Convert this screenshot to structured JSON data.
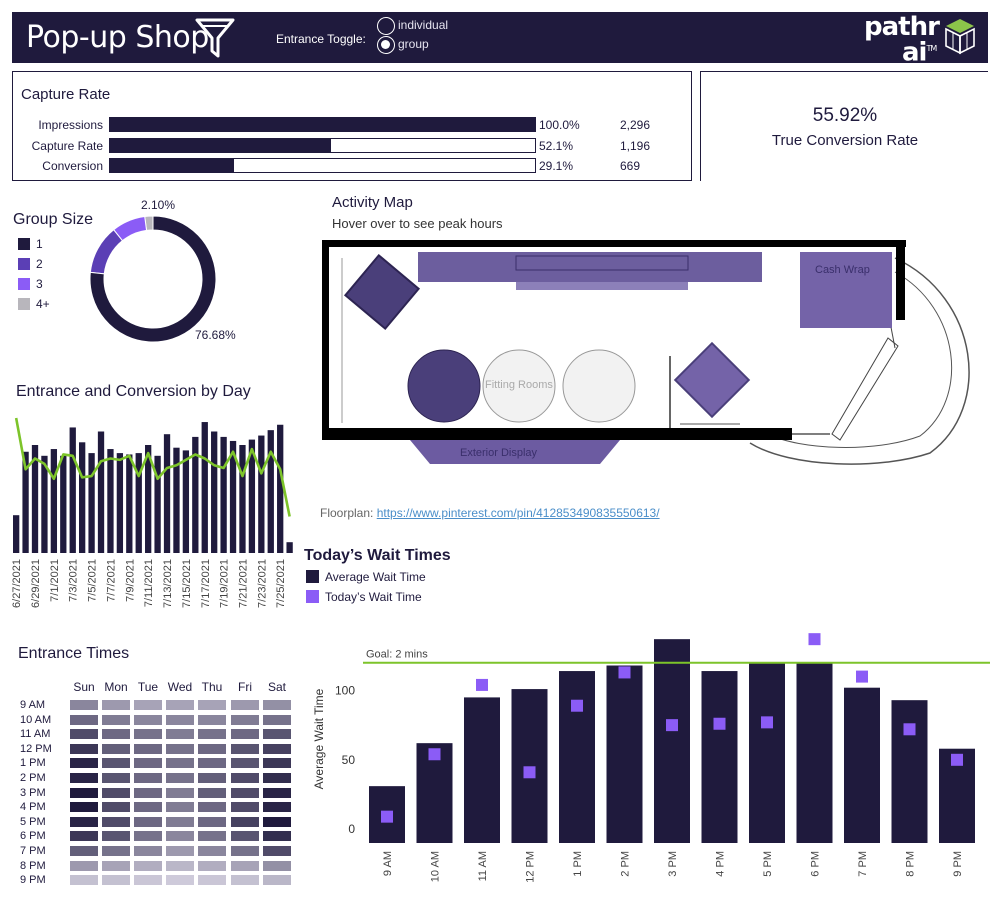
{
  "header": {
    "title": "Pop-up Shop",
    "entrance_toggle_label": "Entrance Toggle:",
    "toggle_options": [
      {
        "label": "individual",
        "selected": false
      },
      {
        "label": "group",
        "selected": true
      }
    ],
    "logo_line1": "pathr",
    "logo_line2": "ai",
    "logo_tm": "TM"
  },
  "capture": {
    "title": "Capture Rate",
    "rows": [
      {
        "label": "Impressions",
        "fraction": 1.0,
        "pct": "100.0%",
        "count": "2,296"
      },
      {
        "label": "Capture Rate",
        "fraction": 0.521,
        "pct": "52.1%",
        "count": "1,196"
      },
      {
        "label": "Conversion",
        "fraction": 0.291,
        "pct": "29.1%",
        "count": "669"
      }
    ]
  },
  "conversion": {
    "value": "55.92%",
    "label": "True Conversion Rate"
  },
  "group_size": {
    "title": "Group Size",
    "legend": [
      {
        "label": "1",
        "color": "#1f1a3d"
      },
      {
        "label": "2",
        "color": "#5b3fb5"
      },
      {
        "label": "3",
        "color": "#8b5cf6"
      },
      {
        "label": "4+",
        "color": "#b8b6bc"
      }
    ],
    "label_top": "2.10%",
    "label_bottom": "76.68%"
  },
  "activity_map": {
    "title": "Activity Map",
    "subtitle": "Hover over to see peak hours",
    "labels": {
      "cash_wrap": "Cash Wrap",
      "fitting_rooms": "Fitting Rooms",
      "exterior_display": "Exterior Display"
    },
    "floorplan_prefix": "Floorplan: ",
    "floorplan_url": "https://www.pinterest.com/pin/412853490835550613/"
  },
  "entrance_day": {
    "title": "Entrance and Conversion by Day"
  },
  "wait_times": {
    "title": "Today’s Wait Times",
    "legend": [
      {
        "label": "Average Wait Time",
        "color": "#1f1a3d"
      },
      {
        "label": "Today’s Wait Time",
        "color": "#8b5cf6"
      }
    ],
    "goal_label": "Goal: 2 mins",
    "y_label": "Average Wait Time"
  },
  "entrance_times": {
    "title": "Entrance Times",
    "days": [
      "Sun",
      "Mon",
      "Tue",
      "Wed",
      "Thu",
      "Fri",
      "Sat"
    ],
    "hours": [
      "9 AM",
      "10 AM",
      "11 AM",
      "12 PM",
      "1 PM",
      "2 PM",
      "3 PM",
      "4 PM",
      "5 PM",
      "6 PM",
      "7 PM",
      "8 PM",
      "9 PM"
    ],
    "intensity": [
      [
        0.45,
        0.35,
        0.3,
        0.3,
        0.3,
        0.35,
        0.4
      ],
      [
        0.6,
        0.5,
        0.45,
        0.45,
        0.45,
        0.5,
        0.55
      ],
      [
        0.75,
        0.6,
        0.55,
        0.5,
        0.55,
        0.6,
        0.7
      ],
      [
        0.85,
        0.65,
        0.6,
        0.55,
        0.6,
        0.7,
        0.8
      ],
      [
        0.95,
        0.7,
        0.6,
        0.55,
        0.6,
        0.7,
        0.85
      ],
      [
        0.95,
        0.7,
        0.6,
        0.55,
        0.65,
        0.75,
        0.9
      ],
      [
        1.0,
        0.75,
        0.6,
        0.5,
        0.65,
        0.75,
        0.95
      ],
      [
        1.0,
        0.75,
        0.6,
        0.5,
        0.6,
        0.75,
        0.95
      ],
      [
        0.95,
        0.75,
        0.6,
        0.5,
        0.6,
        0.8,
        1.0
      ],
      [
        0.85,
        0.7,
        0.55,
        0.45,
        0.55,
        0.7,
        0.9
      ],
      [
        0.65,
        0.55,
        0.45,
        0.35,
        0.45,
        0.55,
        0.75
      ],
      [
        0.35,
        0.3,
        0.25,
        0.2,
        0.25,
        0.3,
        0.4
      ],
      [
        0.15,
        0.15,
        0.12,
        0.1,
        0.12,
        0.15,
        0.2
      ]
    ]
  },
  "chart_data": [
    {
      "type": "pie",
      "id": "group-size-donut",
      "categories": [
        "1",
        "2",
        "3",
        "4+"
      ],
      "values": [
        76.68,
        12.6,
        8.62,
        2.1
      ]
    },
    {
      "type": "bar",
      "id": "entrance-conversion-by-day",
      "categories": [
        "6/27/2021",
        "6/28/2021",
        "6/29/2021",
        "6/30/2021",
        "7/1/2021",
        "7/2/2021",
        "7/3/2021",
        "7/4/2021",
        "7/5/2021",
        "7/6/2021",
        "7/7/2021",
        "7/8/2021",
        "7/9/2021",
        "7/10/2021",
        "7/11/2021",
        "7/12/2021",
        "7/13/2021",
        "7/14/2021",
        "7/15/2021",
        "7/16/2021",
        "7/17/2021",
        "7/18/2021",
        "7/19/2021",
        "7/20/2021",
        "7/21/2021",
        "7/22/2021",
        "7/23/2021",
        "7/24/2021",
        "7/25/2021",
        "7/26/2021"
      ],
      "tick_labels": [
        "6/27/2021",
        "6/29/2021",
        "7/1/2021",
        "7/3/2021",
        "7/5/2021",
        "7/7/2021",
        "7/9/2021",
        "7/11/2021",
        "7/13/2021",
        "7/15/2021",
        "7/17/2021",
        "7/19/2021",
        "7/21/2021",
        "7/23/2021",
        "7/25/2021"
      ],
      "series": [
        {
          "values": [
            0.28,
            0.75,
            0.8,
            0.72,
            0.77,
            0.72,
            0.93,
            0.82,
            0.74,
            0.9,
            0.77,
            0.74,
            0.73,
            0.74,
            0.8,
            0.72,
            0.88,
            0.78,
            0.76,
            0.86,
            0.97,
            0.9,
            0.86,
            0.83,
            0.8,
            0.84,
            0.87,
            0.91,
            0.95,
            0.08
          ]
        },
        {
          "values": [
            1.0,
            0.62,
            0.7,
            0.66,
            0.55,
            0.73,
            0.72,
            0.56,
            0.57,
            0.68,
            0.7,
            0.69,
            0.72,
            0.57,
            0.74,
            0.55,
            0.63,
            0.65,
            0.69,
            0.73,
            0.7,
            0.65,
            0.63,
            0.75,
            0.57,
            0.77,
            0.59,
            0.75,
            0.62,
            0.27
          ]
        }
      ]
    },
    {
      "type": "bar",
      "id": "todays-wait-times",
      "categories": [
        "9 AM",
        "10 AM",
        "11 AM",
        "12 PM",
        "1 PM",
        "2 PM",
        "3 PM",
        "4 PM",
        "5 PM",
        "6 PM",
        "7 PM",
        "8 PM",
        "9 PM"
      ],
      "series": [
        {
          "name": "Average Wait Time",
          "values": [
            31,
            62,
            95,
            101,
            114,
            118,
            137,
            114,
            120,
            120,
            102,
            93,
            58
          ]
        },
        {
          "name": "Today’s Wait Time",
          "values": [
            9,
            54,
            104,
            41,
            89,
            113,
            75,
            76,
            77,
            137,
            110,
            72,
            50
          ]
        }
      ],
      "goal": 120,
      "y_ticks": [
        0,
        50,
        100
      ],
      "ylim": [
        -10,
        140
      ]
    }
  ]
}
